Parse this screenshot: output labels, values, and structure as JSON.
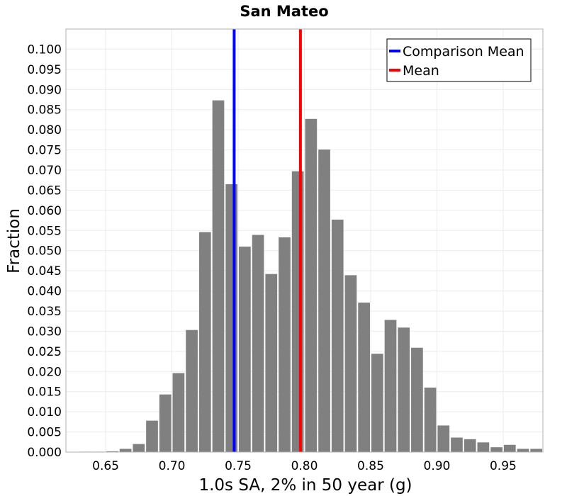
{
  "chart_data": {
    "type": "bar",
    "title": "San Mateo",
    "xlabel": "1.0s SA, 2% in 50 year (g)",
    "ylabel": "Fraction",
    "xlim": [
      0.62,
      0.98
    ],
    "ylim": [
      0,
      0.105
    ],
    "x_ticks": [
      "0.65",
      "0.70",
      "0.75",
      "0.80",
      "0.85",
      "0.90",
      "0.95"
    ],
    "y_ticks": [
      "0.000",
      "0.005",
      "0.010",
      "0.015",
      "0.020",
      "0.025",
      "0.030",
      "0.035",
      "0.040",
      "0.045",
      "0.050",
      "0.055",
      "0.060",
      "0.065",
      "0.070",
      "0.075",
      "0.080",
      "0.085",
      "0.090",
      "0.095",
      "0.100"
    ],
    "grid": true,
    "bin_width": 0.01,
    "bins": [
      {
        "x": 0.635,
        "y": 0.0001
      },
      {
        "x": 0.645,
        "y": 0.0001
      },
      {
        "x": 0.655,
        "y": 0.0002
      },
      {
        "x": 0.665,
        "y": 0.0008
      },
      {
        "x": 0.675,
        "y": 0.002
      },
      {
        "x": 0.685,
        "y": 0.0078
      },
      {
        "x": 0.695,
        "y": 0.0143
      },
      {
        "x": 0.705,
        "y": 0.0196
      },
      {
        "x": 0.715,
        "y": 0.0303
      },
      {
        "x": 0.725,
        "y": 0.0546
      },
      {
        "x": 0.735,
        "y": 0.0873
      },
      {
        "x": 0.745,
        "y": 0.0665
      },
      {
        "x": 0.755,
        "y": 0.051
      },
      {
        "x": 0.765,
        "y": 0.0539
      },
      {
        "x": 0.775,
        "y": 0.0442
      },
      {
        "x": 0.785,
        "y": 0.0533
      },
      {
        "x": 0.795,
        "y": 0.0697
      },
      {
        "x": 0.805,
        "y": 0.0827
      },
      {
        "x": 0.815,
        "y": 0.0751
      },
      {
        "x": 0.825,
        "y": 0.0577
      },
      {
        "x": 0.835,
        "y": 0.0439
      },
      {
        "x": 0.845,
        "y": 0.0371
      },
      {
        "x": 0.855,
        "y": 0.0244
      },
      {
        "x": 0.865,
        "y": 0.0328
      },
      {
        "x": 0.875,
        "y": 0.0309
      },
      {
        "x": 0.885,
        "y": 0.0259
      },
      {
        "x": 0.895,
        "y": 0.016
      },
      {
        "x": 0.905,
        "y": 0.0066
      },
      {
        "x": 0.915,
        "y": 0.0036
      },
      {
        "x": 0.925,
        "y": 0.0032
      },
      {
        "x": 0.935,
        "y": 0.0024
      },
      {
        "x": 0.945,
        "y": 0.0012
      },
      {
        "x": 0.955,
        "y": 0.0018
      },
      {
        "x": 0.965,
        "y": 0.0008
      },
      {
        "x": 0.975,
        "y": 0.0008
      }
    ],
    "lines": [
      {
        "name": "Comparison Mean",
        "x": 0.747,
        "color": "#0000ff"
      },
      {
        "name": "Mean",
        "x": 0.797,
        "color": "#ff0000"
      }
    ],
    "bar_color": "#808080",
    "legend_position": "top-right"
  }
}
